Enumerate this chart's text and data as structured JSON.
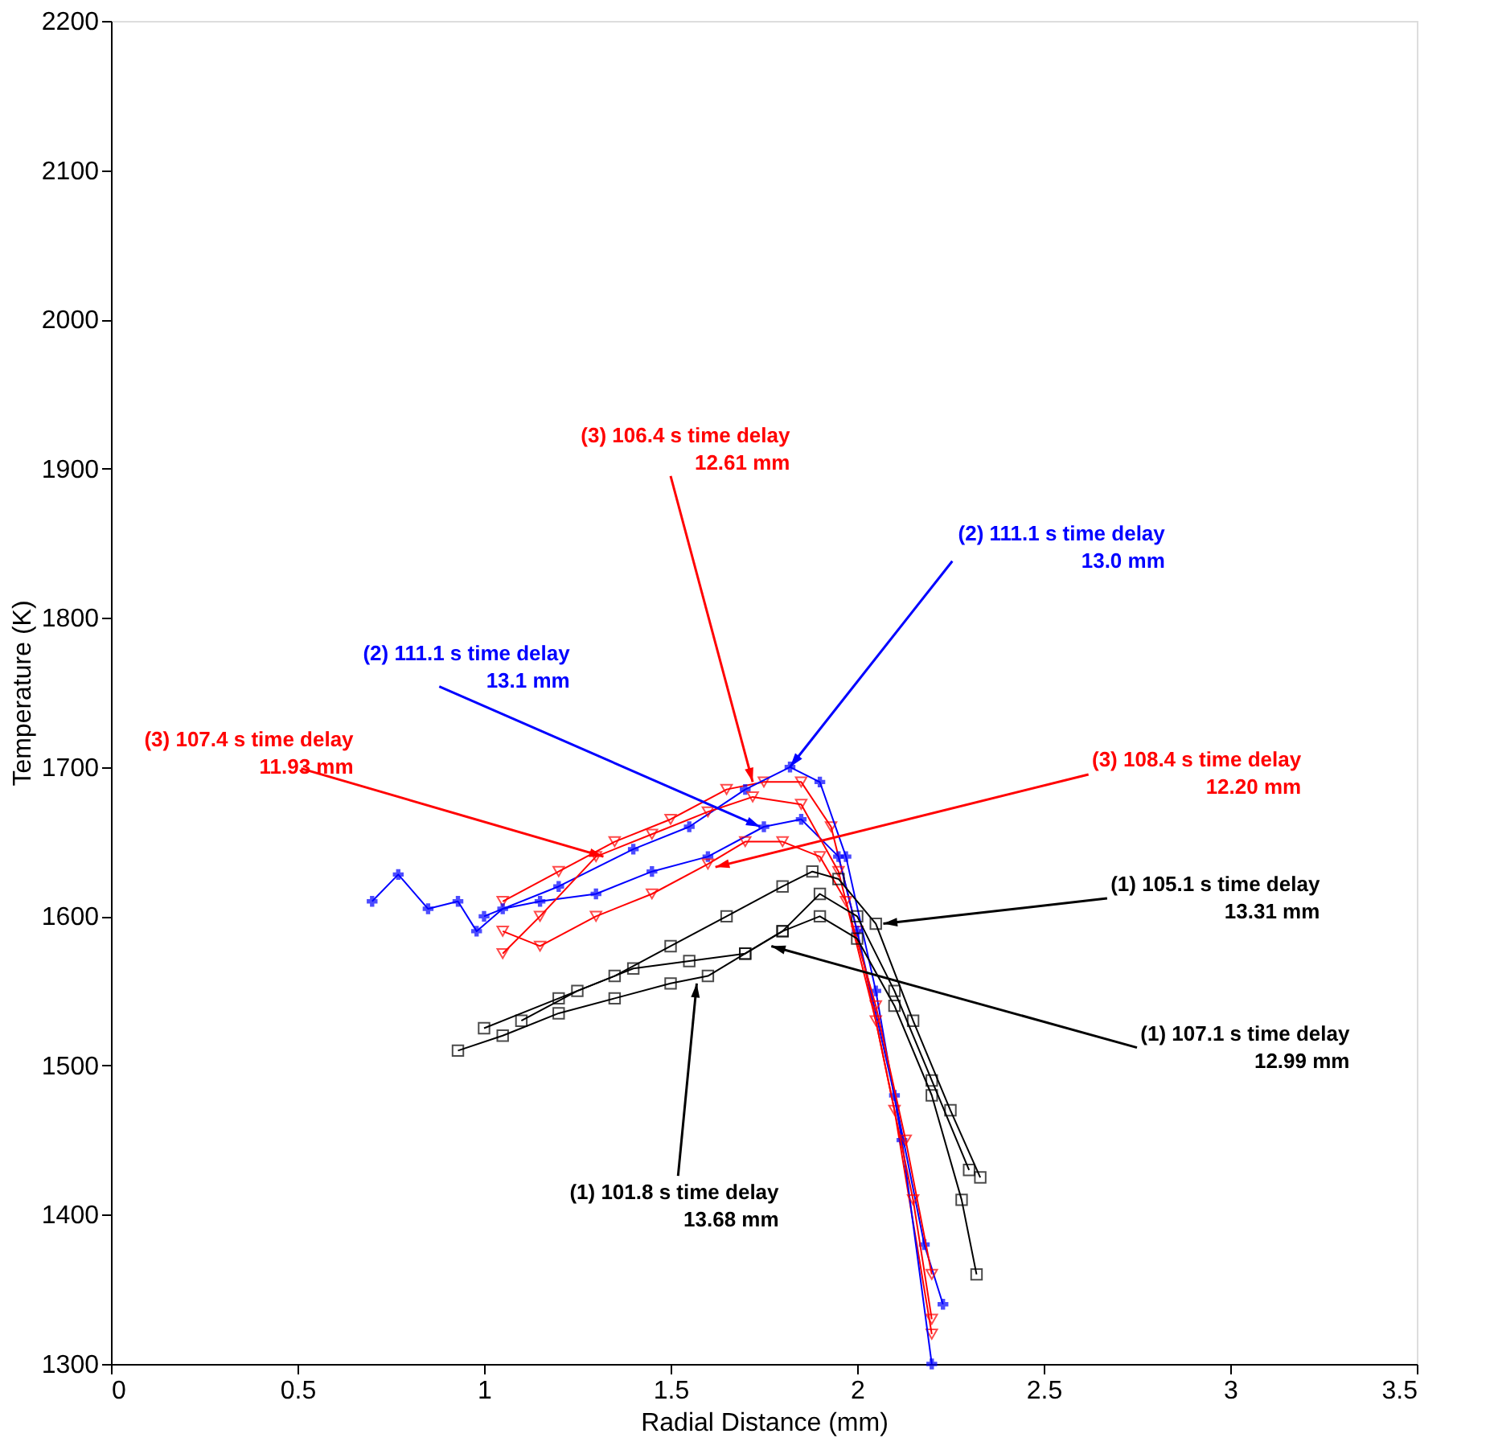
{
  "chart_data": {
    "type": "line",
    "xlabel": "Radial Distance (mm)",
    "ylabel": "Temperature (K)",
    "xlim": [
      0,
      3.5
    ],
    "xticks": [
      0,
      0.5,
      1,
      1.5,
      2,
      2.5,
      3,
      3.5
    ],
    "ylim": [
      1300,
      2200
    ],
    "yticks": [
      1300,
      1400,
      1500,
      1600,
      1700,
      1800,
      1900,
      2000,
      2100,
      2200
    ],
    "grid": false,
    "line_style": "solid",
    "series": [
      {
        "color": "#ff0000",
        "marker": "triangle",
        "x": [
          1.05,
          1.2,
          1.35,
          1.5,
          1.65,
          1.75,
          1.85,
          1.93,
          2.0,
          2.1,
          2.2
        ],
        "values": [
          1610,
          1630,
          1650,
          1665,
          1685,
          1690,
          1690,
          1660,
          1590,
          1470,
          1320
        ]
      },
      {
        "color": "#0000ff",
        "marker": "cross",
        "x": [
          1.0,
          1.2,
          1.4,
          1.55,
          1.7,
          1.82,
          1.9,
          1.97,
          2.05,
          2.12,
          2.2
        ],
        "values": [
          1600,
          1620,
          1645,
          1660,
          1685,
          1700,
          1690,
          1640,
          1550,
          1450,
          1300
        ]
      },
      {
        "color": "#0000ff",
        "marker": "cross",
        "x": [
          0.7,
          0.77,
          0.85,
          0.93,
          0.98,
          1.05,
          1.15,
          1.3,
          1.45,
          1.6,
          1.75,
          1.85,
          1.95,
          2.0,
          2.1,
          2.18,
          2.23
        ],
        "values": [
          1610,
          1628,
          1605,
          1610,
          1590,
          1605,
          1610,
          1615,
          1630,
          1640,
          1660,
          1665,
          1640,
          1590,
          1480,
          1380,
          1340
        ]
      },
      {
        "color": "#ff0000",
        "marker": "triangle",
        "x": [
          1.05,
          1.15,
          1.3,
          1.45,
          1.6,
          1.72,
          1.85,
          1.95,
          2.05,
          2.15,
          2.2
        ],
        "values": [
          1575,
          1600,
          1640,
          1655,
          1670,
          1680,
          1675,
          1630,
          1530,
          1410,
          1330
        ]
      },
      {
        "color": "#ff0000",
        "marker": "triangle",
        "x": [
          1.05,
          1.15,
          1.3,
          1.45,
          1.6,
          1.7,
          1.8,
          1.9,
          1.97,
          2.05,
          2.13,
          2.2
        ],
        "values": [
          1590,
          1580,
          1600,
          1615,
          1635,
          1650,
          1650,
          1640,
          1610,
          1540,
          1450,
          1360
        ]
      },
      {
        "color": "#000000",
        "marker": "square",
        "x": [
          1.0,
          1.2,
          1.35,
          1.5,
          1.65,
          1.8,
          1.88,
          1.95,
          2.05,
          2.15,
          2.25,
          2.33
        ],
        "values": [
          1525,
          1545,
          1560,
          1580,
          1600,
          1620,
          1630,
          1625,
          1595,
          1530,
          1470,
          1425
        ]
      },
      {
        "color": "#000000",
        "marker": "square",
        "x": [
          1.1,
          1.25,
          1.4,
          1.55,
          1.7,
          1.8,
          1.9,
          2.0,
          2.1,
          2.2,
          2.3
        ],
        "values": [
          1530,
          1550,
          1565,
          1570,
          1575,
          1590,
          1615,
          1600,
          1550,
          1490,
          1430
        ]
      },
      {
        "color": "#000000",
        "marker": "square",
        "x": [
          0.93,
          1.05,
          1.2,
          1.35,
          1.5,
          1.6,
          1.7,
          1.8,
          1.9,
          2.0,
          2.1,
          2.2,
          2.28,
          2.32
        ],
        "values": [
          1510,
          1520,
          1535,
          1545,
          1555,
          1560,
          1575,
          1590,
          1600,
          1585,
          1540,
          1480,
          1410,
          1360
        ]
      }
    ],
    "annotations": [
      {
        "text": "(3) 106.4 s time delay\n12.61 mm",
        "x": 1.72,
        "y": 1690
      },
      {
        "text": "(2) 111.1 s time delay\n13.0 mm",
        "x": 1.82,
        "y": 1700
      },
      {
        "text": "(2) 111.1 s time delay\n13.1 mm",
        "x": 1.74,
        "y": 1660
      },
      {
        "text": "(3) 107.4 s time delay\n11.93 mm",
        "x": 1.32,
        "y": 1640
      },
      {
        "text": "(3) 108.4 s time delay\n12.20 mm",
        "x": 1.62,
        "y": 1633
      },
      {
        "text": "(1) 105.1 s time delay\n13.31 mm",
        "x": 2.07,
        "y": 1595
      },
      {
        "text": "(1) 107.1 s time delay\n12.99 mm",
        "x": 1.77,
        "y": 1580
      },
      {
        "text": "(1) 101.8 s time delay\n13.68 mm",
        "x": 1.57,
        "y": 1555
      }
    ]
  }
}
